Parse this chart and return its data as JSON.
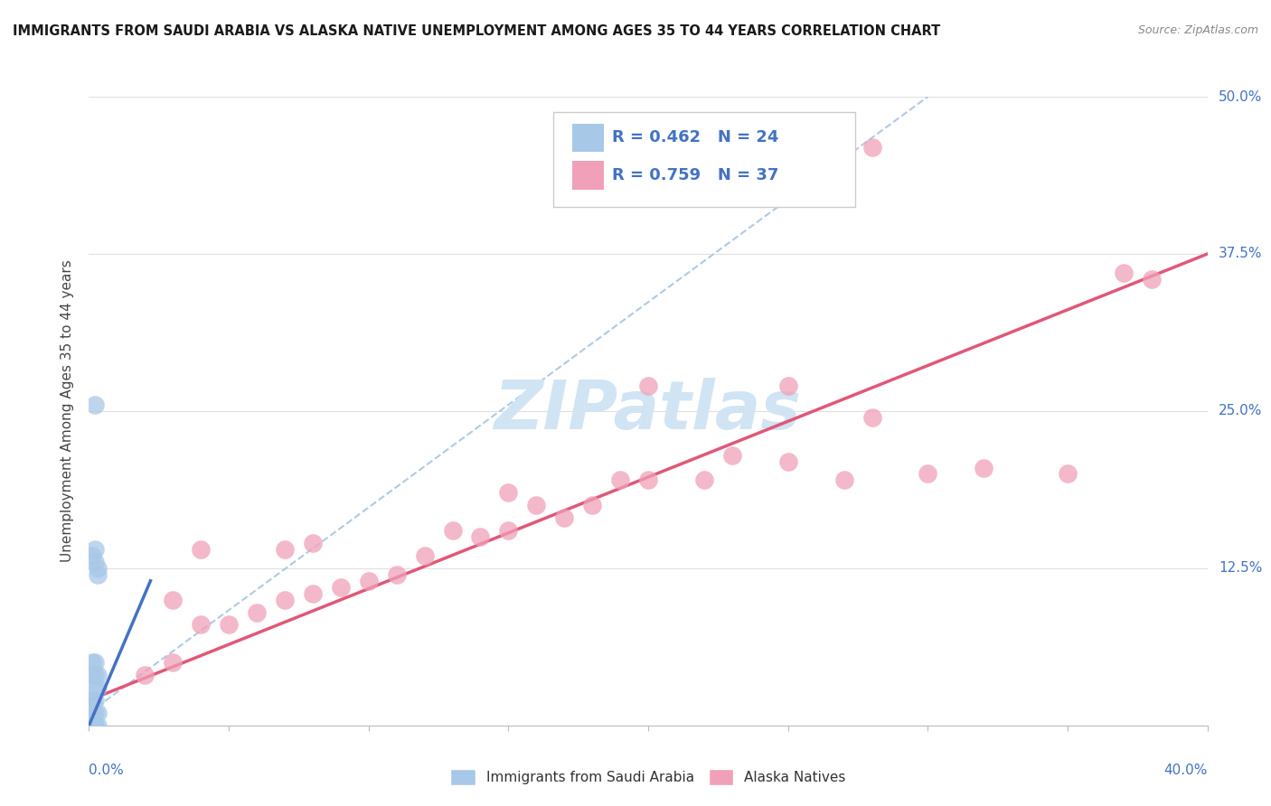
{
  "title": "IMMIGRANTS FROM SAUDI ARABIA VS ALASKA NATIVE UNEMPLOYMENT AMONG AGES 35 TO 44 YEARS CORRELATION CHART",
  "source": "Source: ZipAtlas.com",
  "ylabel": "Unemployment Among Ages 35 to 44 years",
  "xlim": [
    0,
    0.4
  ],
  "ylim": [
    0,
    0.5
  ],
  "legend_label1": "Immigrants from Saudi Arabia",
  "legend_label2": "Alaska Natives",
  "color_blue": "#a8c8e8",
  "color_pink": "#f0a0b8",
  "color_blue_line": "#4472c4",
  "color_pink_line": "#e05878",
  "color_blue_dashed": "#a8c4e0",
  "color_blue_text": "#4472c4",
  "color_grid": "#e0e0e0",
  "watermark_color": "#d0e4f4",
  "saudi_x": [
    0.001,
    0.002,
    0.001,
    0.002,
    0.003,
    0.001,
    0.002,
    0.003,
    0.001,
    0.002,
    0.001,
    0.002,
    0.003,
    0.001,
    0.002,
    0.003,
    0.002,
    0.001,
    0.003,
    0.002,
    0.001,
    0.002,
    0.002,
    0.003
  ],
  "saudi_y": [
    0.0,
    0.0,
    0.0,
    0.0,
    0.0,
    0.01,
    0.01,
    0.01,
    0.02,
    0.02,
    0.02,
    0.03,
    0.03,
    0.04,
    0.04,
    0.04,
    0.05,
    0.05,
    0.125,
    0.13,
    0.135,
    0.14,
    0.255,
    0.12
  ],
  "alaska_x": [
    0.02,
    0.03,
    0.03,
    0.04,
    0.04,
    0.05,
    0.06,
    0.07,
    0.07,
    0.08,
    0.08,
    0.09,
    0.1,
    0.11,
    0.12,
    0.13,
    0.14,
    0.15,
    0.15,
    0.16,
    0.17,
    0.18,
    0.19,
    0.2,
    0.22,
    0.23,
    0.25,
    0.27,
    0.28,
    0.3,
    0.32,
    0.35,
    0.37,
    0.38,
    0.25,
    0.2,
    0.28
  ],
  "alaska_y": [
    0.04,
    0.05,
    0.1,
    0.08,
    0.14,
    0.08,
    0.09,
    0.1,
    0.14,
    0.105,
    0.145,
    0.11,
    0.115,
    0.12,
    0.135,
    0.155,
    0.15,
    0.155,
    0.185,
    0.175,
    0.165,
    0.175,
    0.195,
    0.195,
    0.195,
    0.215,
    0.21,
    0.195,
    0.245,
    0.2,
    0.205,
    0.2,
    0.36,
    0.355,
    0.27,
    0.27,
    0.46
  ]
}
